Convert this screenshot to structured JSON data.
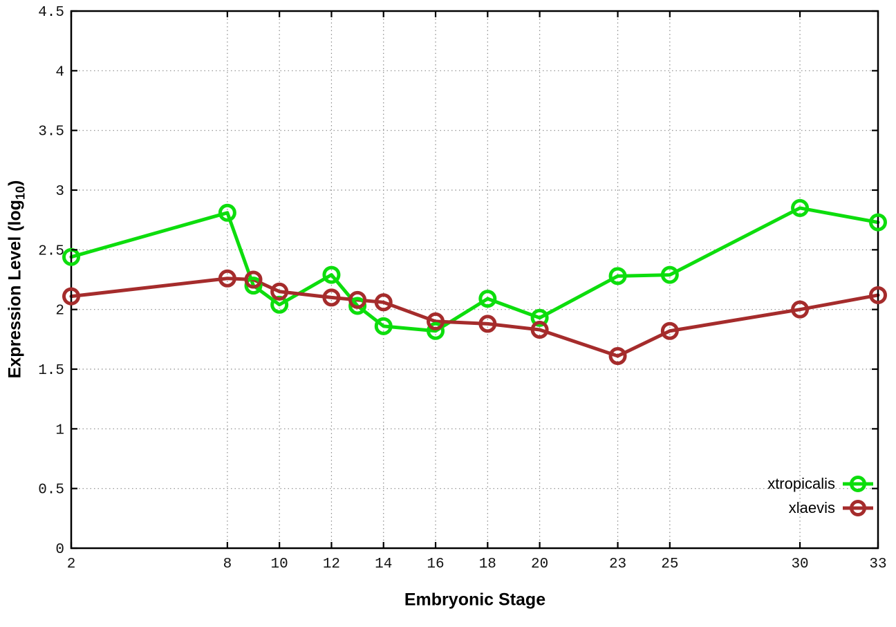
{
  "figure": {
    "background": "#ffffff",
    "grid_color": "#8a8a8a",
    "border_color": "#000000"
  },
  "chart_data": {
    "type": "line",
    "title": "",
    "xlabel": "Embryonic Stage",
    "ylabel": "Expression Level (log10)",
    "ylabel_pre": "Expression Level (log",
    "ylabel_sub": "10",
    "ylabel_post": ")",
    "x": [
      2,
      8,
      9,
      10,
      12,
      13,
      14,
      16,
      18,
      20,
      23,
      25,
      30,
      33
    ],
    "series": [
      {
        "name": "xtropicalis",
        "color": "#0ddd0d",
        "marker": "open-circle",
        "values": [
          2.44,
          2.81,
          2.2,
          2.04,
          2.29,
          2.03,
          1.86,
          1.82,
          2.09,
          1.93,
          2.28,
          2.29,
          2.85,
          2.73
        ]
      },
      {
        "name": "xlaevis",
        "color": "#a52c2c",
        "marker": "open-circle",
        "values": [
          2.11,
          2.26,
          2.25,
          2.15,
          2.1,
          2.08,
          2.06,
          1.9,
          1.88,
          1.83,
          1.61,
          1.82,
          2.0,
          2.12
        ]
      }
    ],
    "xlim": [
      2,
      33
    ],
    "ylim": [
      0,
      4.5
    ],
    "x_ticks": {
      "values": [
        2,
        8,
        10,
        12,
        14,
        16,
        18,
        20,
        23,
        25,
        30,
        33
      ],
      "labels": [
        "2",
        "8",
        "10",
        "12",
        "14",
        "16",
        "18",
        "20",
        "23",
        "25",
        "30",
        "33"
      ]
    },
    "y_ticks": {
      "values": [
        0,
        0.5,
        1,
        1.5,
        2,
        2.5,
        3,
        3.5,
        4,
        4.5
      ],
      "labels": [
        "0",
        "0.5",
        "1",
        "1.5",
        "2",
        "2.5",
        "3",
        "3.5",
        "4",
        "4.5"
      ]
    },
    "grid": true,
    "legend_position": "bottom-right"
  }
}
